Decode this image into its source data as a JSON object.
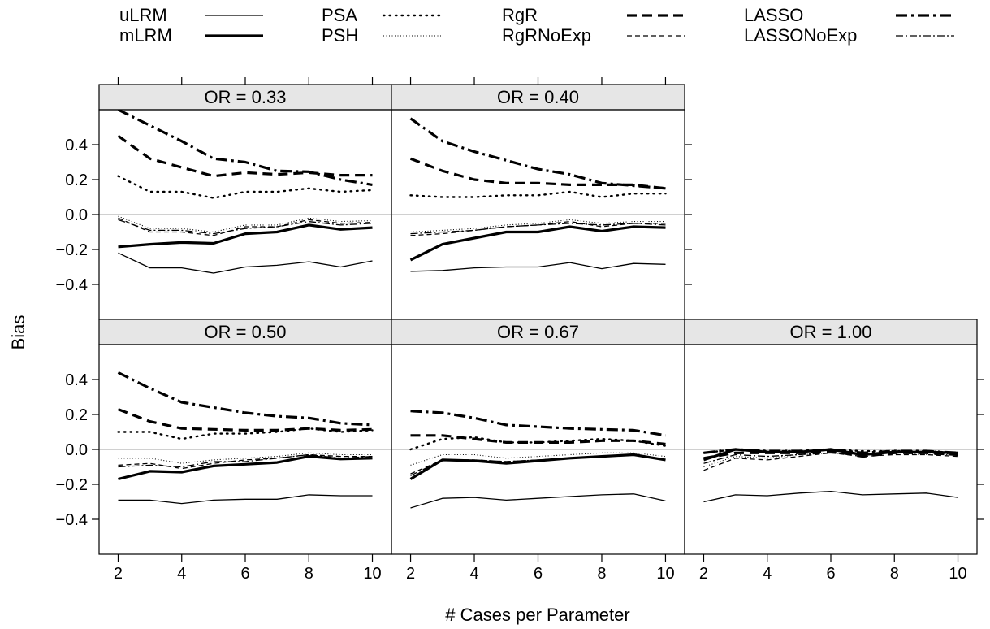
{
  "chart_data": {
    "type": "line",
    "xlabel": "# Cases per Parameter",
    "ylabel": "Bias",
    "xlim": [
      1.4,
      10.6
    ],
    "ylim": [
      -0.6,
      0.6
    ],
    "x_ticks": [
      2,
      4,
      6,
      8,
      10
    ],
    "x_tick_labels": [
      "2",
      "4",
      "6",
      "8",
      "10"
    ],
    "y_ticks": [
      -0.4,
      -0.2,
      0.0,
      0.2,
      0.4
    ],
    "y_tick_labels": [
      "−0.4",
      "−0.2",
      "0.0",
      "0.2",
      "0.4"
    ],
    "reference_line": 0.0,
    "legend": [
      {
        "label": "uLRM",
        "style": "thin-solid"
      },
      {
        "label": "mLRM",
        "style": "thick-solid"
      },
      {
        "label": "PSA",
        "style": "dotted"
      },
      {
        "label": "PSH",
        "style": "fine-dotted"
      },
      {
        "label": "RgR",
        "style": "thick-dashed"
      },
      {
        "label": "RgRNoExp",
        "style": "thin-dashed"
      },
      {
        "label": "LASSO",
        "style": "thick-dashdot"
      },
      {
        "label": "LASSONoExp",
        "style": "thin-dashdot"
      }
    ],
    "x": [
      2,
      3,
      4,
      5,
      6,
      7,
      8,
      9,
      10
    ],
    "panels": [
      {
        "title": "OR = 0.33",
        "series": [
          {
            "name": "uLRM",
            "values": [
              -0.22,
              -0.305,
              -0.305,
              -0.335,
              -0.3,
              -0.29,
              -0.27,
              -0.3,
              -0.265
            ]
          },
          {
            "name": "mLRM",
            "values": [
              -0.185,
              -0.17,
              -0.16,
              -0.165,
              -0.11,
              -0.1,
              -0.06,
              -0.085,
              -0.075
            ]
          },
          {
            "name": "PSA",
            "values": [
              0.22,
              0.13,
              0.13,
              0.095,
              0.13,
              0.13,
              0.15,
              0.13,
              0.14
            ]
          },
          {
            "name": "PSH",
            "values": [
              -0.01,
              -0.08,
              -0.08,
              -0.1,
              -0.06,
              -0.06,
              -0.02,
              -0.04,
              -0.035
            ]
          },
          {
            "name": "RgR",
            "values": [
              0.45,
              0.32,
              0.27,
              0.22,
              0.24,
              0.23,
              0.24,
              0.225,
              0.225
            ]
          },
          {
            "name": "RgRNoExp",
            "values": [
              -0.02,
              -0.1,
              -0.1,
              -0.12,
              -0.07,
              -0.07,
              -0.03,
              -0.05,
              -0.045
            ]
          },
          {
            "name": "LASSO",
            "values": [
              0.6,
              0.51,
              0.42,
              0.32,
              0.3,
              0.25,
              0.245,
              0.2,
              0.17
            ]
          },
          {
            "name": "LASSONoExp",
            "values": [
              -0.03,
              -0.09,
              -0.09,
              -0.11,
              -0.08,
              -0.07,
              -0.04,
              -0.06,
              -0.05
            ]
          }
        ]
      },
      {
        "title": "OR = 0.40",
        "series": [
          {
            "name": "uLRM",
            "values": [
              -0.325,
              -0.32,
              -0.305,
              -0.3,
              -0.3,
              -0.275,
              -0.31,
              -0.28,
              -0.285
            ]
          },
          {
            "name": "mLRM",
            "values": [
              -0.26,
              -0.17,
              -0.135,
              -0.1,
              -0.1,
              -0.07,
              -0.095,
              -0.07,
              -0.075
            ]
          },
          {
            "name": "PSA",
            "values": [
              0.11,
              0.1,
              0.1,
              0.11,
              0.11,
              0.13,
              0.1,
              0.12,
              0.12
            ]
          },
          {
            "name": "PSH",
            "values": [
              -0.1,
              -0.09,
              -0.08,
              -0.06,
              -0.05,
              -0.03,
              -0.05,
              -0.04,
              -0.04
            ]
          },
          {
            "name": "RgR",
            "values": [
              0.32,
              0.25,
              0.2,
              0.18,
              0.18,
              0.17,
              0.17,
              0.17,
              0.15
            ]
          },
          {
            "name": "RgRNoExp",
            "values": [
              -0.12,
              -0.11,
              -0.09,
              -0.07,
              -0.06,
              -0.04,
              -0.07,
              -0.05,
              -0.05
            ]
          },
          {
            "name": "LASSO",
            "values": [
              0.55,
              0.42,
              0.36,
              0.31,
              0.26,
              0.23,
              0.18,
              0.165,
              0.15
            ]
          },
          {
            "name": "LASSONoExp",
            "values": [
              -0.11,
              -0.1,
              -0.09,
              -0.07,
              -0.06,
              -0.05,
              -0.06,
              -0.05,
              -0.06
            ]
          }
        ]
      },
      {
        "title": "OR = 0.50",
        "series": [
          {
            "name": "uLRM",
            "values": [
              -0.29,
              -0.29,
              -0.31,
              -0.29,
              -0.285,
              -0.285,
              -0.26,
              -0.265,
              -0.265
            ]
          },
          {
            "name": "mLRM",
            "values": [
              -0.17,
              -0.125,
              -0.13,
              -0.095,
              -0.085,
              -0.075,
              -0.04,
              -0.055,
              -0.05
            ]
          },
          {
            "name": "PSA",
            "values": [
              0.1,
              0.1,
              0.06,
              0.09,
              0.09,
              0.1,
              0.12,
              0.1,
              0.11
            ]
          },
          {
            "name": "PSH",
            "values": [
              -0.05,
              -0.05,
              -0.08,
              -0.06,
              -0.05,
              -0.04,
              -0.02,
              -0.03,
              -0.03
            ]
          },
          {
            "name": "RgR",
            "values": [
              0.23,
              0.16,
              0.12,
              0.115,
              0.11,
              0.11,
              0.12,
              0.11,
              0.115
            ]
          },
          {
            "name": "RgRNoExp",
            "values": [
              -0.09,
              -0.08,
              -0.11,
              -0.08,
              -0.06,
              -0.05,
              -0.03,
              -0.04,
              -0.04
            ]
          },
          {
            "name": "LASSO",
            "values": [
              0.44,
              0.35,
              0.27,
              0.24,
              0.21,
              0.19,
              0.18,
              0.15,
              0.14
            ]
          },
          {
            "name": "LASSONoExp",
            "values": [
              -0.1,
              -0.09,
              -0.1,
              -0.07,
              -0.07,
              -0.05,
              -0.03,
              -0.05,
              -0.04
            ]
          }
        ]
      },
      {
        "title": "OR = 0.67",
        "series": [
          {
            "name": "uLRM",
            "values": [
              -0.335,
              -0.28,
              -0.275,
              -0.29,
              -0.28,
              -0.27,
              -0.26,
              -0.255,
              -0.295
            ]
          },
          {
            "name": "mLRM",
            "values": [
              -0.17,
              -0.06,
              -0.065,
              -0.08,
              -0.065,
              -0.05,
              -0.04,
              -0.03,
              -0.06
            ]
          },
          {
            "name": "PSA",
            "values": [
              0.0,
              0.06,
              0.07,
              0.04,
              0.04,
              0.05,
              0.06,
              0.05,
              0.02
            ]
          },
          {
            "name": "PSH",
            "values": [
              -0.09,
              -0.03,
              -0.03,
              -0.05,
              -0.04,
              -0.03,
              -0.02,
              -0.02,
              -0.04
            ]
          },
          {
            "name": "RgR",
            "values": [
              0.08,
              0.08,
              0.06,
              0.04,
              0.04,
              0.04,
              0.05,
              0.05,
              0.03
            ]
          },
          {
            "name": "RgRNoExp",
            "values": [
              -0.14,
              -0.06,
              -0.06,
              -0.07,
              -0.06,
              -0.05,
              -0.04,
              -0.03,
              -0.06
            ]
          },
          {
            "name": "LASSO",
            "values": [
              0.22,
              0.21,
              0.18,
              0.14,
              0.13,
              0.12,
              0.115,
              0.11,
              0.08
            ]
          },
          {
            "name": "LASSONoExp",
            "values": [
              -0.15,
              -0.06,
              -0.06,
              -0.07,
              -0.06,
              -0.05,
              -0.04,
              -0.03,
              -0.06
            ]
          }
        ]
      },
      {
        "title": "OR = 1.00",
        "series": [
          {
            "name": "uLRM",
            "values": [
              -0.3,
              -0.26,
              -0.265,
              -0.25,
              -0.24,
              -0.26,
              -0.255,
              -0.25,
              -0.275
            ]
          },
          {
            "name": "mLRM",
            "values": [
              -0.06,
              0.0,
              -0.015,
              -0.015,
              0.0,
              -0.03,
              -0.015,
              -0.015,
              -0.02
            ]
          },
          {
            "name": "PSA",
            "values": [
              -0.02,
              0.0,
              -0.01,
              -0.01,
              0.0,
              -0.01,
              -0.01,
              -0.01,
              -0.02
            ]
          },
          {
            "name": "PSH",
            "values": [
              -0.1,
              -0.04,
              -0.05,
              -0.03,
              -0.02,
              -0.03,
              -0.02,
              -0.03,
              -0.03
            ]
          },
          {
            "name": "RgR",
            "values": [
              -0.05,
              -0.02,
              -0.02,
              -0.02,
              -0.01,
              -0.04,
              -0.02,
              -0.02,
              -0.03
            ]
          },
          {
            "name": "RgRNoExp",
            "values": [
              -0.12,
              -0.05,
              -0.06,
              -0.04,
              -0.02,
              -0.04,
              -0.03,
              -0.03,
              -0.04
            ]
          },
          {
            "name": "LASSO",
            "values": [
              -0.02,
              0.0,
              -0.01,
              -0.01,
              0.0,
              -0.02,
              -0.01,
              -0.01,
              -0.02
            ]
          },
          {
            "name": "LASSONoExp",
            "values": [
              -0.08,
              -0.03,
              -0.04,
              -0.03,
              -0.02,
              -0.03,
              -0.02,
              -0.02,
              -0.03
            ]
          }
        ]
      }
    ]
  }
}
